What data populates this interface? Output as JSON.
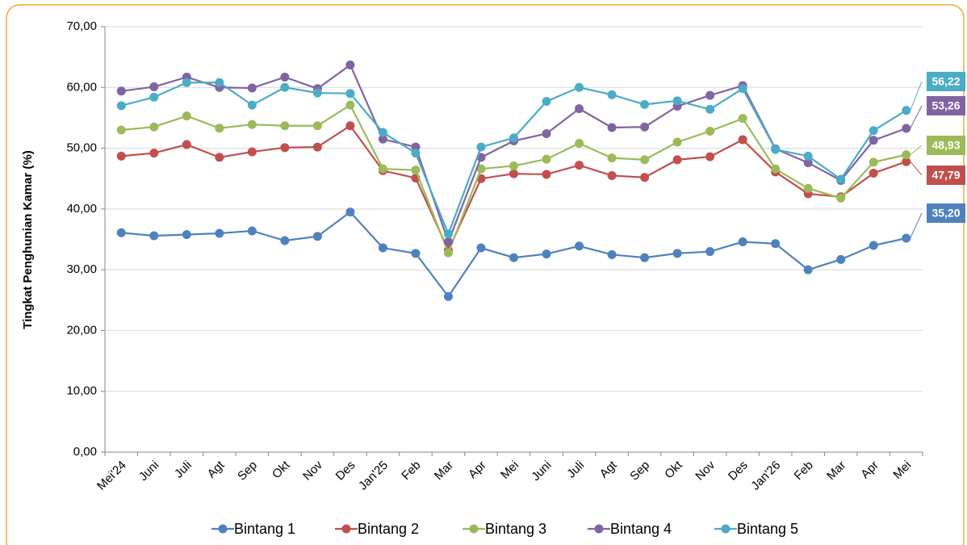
{
  "chart_data": {
    "type": "line",
    "y_label": "Tingkat Penghunian Kamar (%)",
    "categories": [
      "Mei'24",
      "Juni",
      "Juli",
      "Agt",
      "Sep",
      "Okt",
      "Nov",
      "Des",
      "Jan'25",
      "Feb",
      "Mar",
      "Apr",
      "Mei",
      "Juni",
      "Juli",
      "Agt",
      "Sep",
      "Okt",
      "Nov",
      "Des",
      "Jan'26",
      "Feb",
      "Mar",
      "Apr",
      "Mei"
    ],
    "series": [
      {
        "name": "Bintang 1",
        "color": "#4f81bd",
        "values": [
          36.1,
          35.6,
          35.8,
          36.0,
          36.4,
          34.8,
          35.5,
          39.5,
          33.6,
          32.7,
          25.6,
          33.6,
          32.0,
          32.6,
          33.9,
          32.5,
          32.0,
          32.7,
          33.0,
          34.6,
          34.3,
          30.0,
          31.7,
          34.0,
          35.2
        ],
        "value_labels": [
          null,
          null,
          null,
          null,
          null,
          null,
          null,
          null,
          null,
          null,
          null,
          null,
          null,
          null,
          null,
          null,
          null,
          null,
          null,
          null,
          null,
          null,
          null,
          null,
          "35,20"
        ]
      },
      {
        "name": "Bintang 2",
        "color": "#c0504d",
        "values": [
          48.7,
          49.2,
          50.6,
          48.5,
          49.4,
          50.1,
          50.2,
          53.7,
          46.3,
          45.1,
          33.2,
          45.0,
          45.8,
          45.7,
          47.2,
          45.5,
          45.2,
          48.1,
          48.6,
          51.4,
          46.1,
          42.5,
          42.0,
          45.9,
          47.79
        ],
        "value_labels": [
          null,
          null,
          null,
          null,
          null,
          null,
          null,
          null,
          null,
          null,
          null,
          null,
          null,
          null,
          null,
          null,
          null,
          null,
          null,
          null,
          null,
          null,
          null,
          null,
          "47,79"
        ]
      },
      {
        "name": "Bintang 3",
        "color": "#9bbb59",
        "values": [
          53.0,
          53.5,
          55.3,
          53.3,
          53.9,
          53.7,
          53.7,
          57.1,
          46.6,
          46.4,
          32.8,
          46.6,
          47.1,
          48.2,
          50.8,
          48.4,
          48.1,
          51.0,
          52.8,
          54.9,
          46.6,
          43.4,
          41.8,
          47.7,
          48.93
        ],
        "value_labels": [
          null,
          null,
          null,
          null,
          null,
          null,
          null,
          null,
          null,
          null,
          null,
          null,
          null,
          null,
          null,
          null,
          null,
          null,
          null,
          null,
          null,
          null,
          null,
          null,
          "48,93"
        ]
      },
      {
        "name": "Bintang 4",
        "color": "#8064a2",
        "values": [
          59.4,
          60.1,
          61.7,
          60.0,
          59.9,
          61.7,
          59.8,
          63.7,
          51.5,
          50.2,
          34.6,
          48.5,
          51.2,
          52.4,
          56.5,
          53.4,
          53.5,
          56.9,
          58.7,
          60.3,
          49.9,
          47.6,
          44.7,
          51.3,
          53.26
        ],
        "value_labels": [
          null,
          null,
          null,
          null,
          null,
          null,
          null,
          null,
          null,
          null,
          null,
          null,
          null,
          null,
          null,
          null,
          null,
          null,
          null,
          null,
          null,
          null,
          null,
          null,
          "53,26"
        ]
      },
      {
        "name": "Bintang 5",
        "color": "#4bacc6",
        "values": [
          57.0,
          58.4,
          60.8,
          60.8,
          57.1,
          60.0,
          59.1,
          59.0,
          52.6,
          49.2,
          35.9,
          50.2,
          51.7,
          57.7,
          60.0,
          58.8,
          57.2,
          57.8,
          56.4,
          59.8,
          49.8,
          48.7,
          44.9,
          52.9,
          56.22
        ],
        "value_labels": [
          null,
          null,
          null,
          null,
          null,
          null,
          null,
          null,
          null,
          null,
          null,
          null,
          null,
          null,
          null,
          null,
          null,
          null,
          null,
          null,
          null,
          null,
          null,
          null,
          "56,22"
        ]
      }
    ],
    "ylim": [
      0,
      70
    ],
    "yticks": [
      {
        "value": 0,
        "label": "0,00"
      },
      {
        "value": 10,
        "label": "10,00"
      },
      {
        "value": 20,
        "label": "20,00"
      },
      {
        "value": 30,
        "label": "30,00"
      },
      {
        "value": 40,
        "label": "40,00"
      },
      {
        "value": 50,
        "label": "50,00"
      },
      {
        "value": 60,
        "label": "60,00"
      },
      {
        "value": 70,
        "label": "70,00"
      }
    ],
    "grid": true,
    "legend": "bottom"
  }
}
